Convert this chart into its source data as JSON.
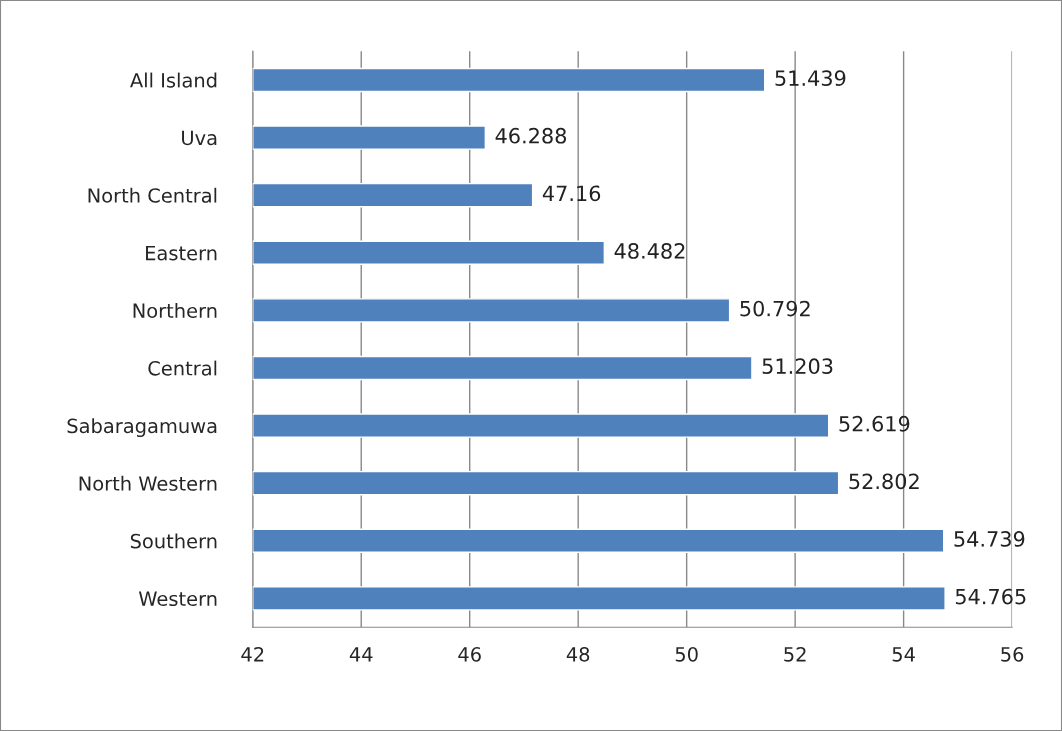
{
  "chart_data": {
    "type": "bar",
    "orientation": "horizontal",
    "categories": [
      "All Island",
      "Uva",
      "North Central",
      "Eastern",
      "Northern",
      "Central",
      "Sabaragamuwa",
      "North Western",
      "Southern",
      "Western"
    ],
    "values": [
      51.439,
      46.288,
      47.16,
      48.482,
      50.792,
      51.203,
      52.619,
      52.802,
      54.739,
      54.765
    ],
    "color": "#4f81bd",
    "xlim": [
      42,
      56
    ],
    "xticks": [
      42,
      44,
      46,
      48,
      50,
      52,
      54,
      56
    ],
    "grid": "x",
    "data_labels": true
  }
}
